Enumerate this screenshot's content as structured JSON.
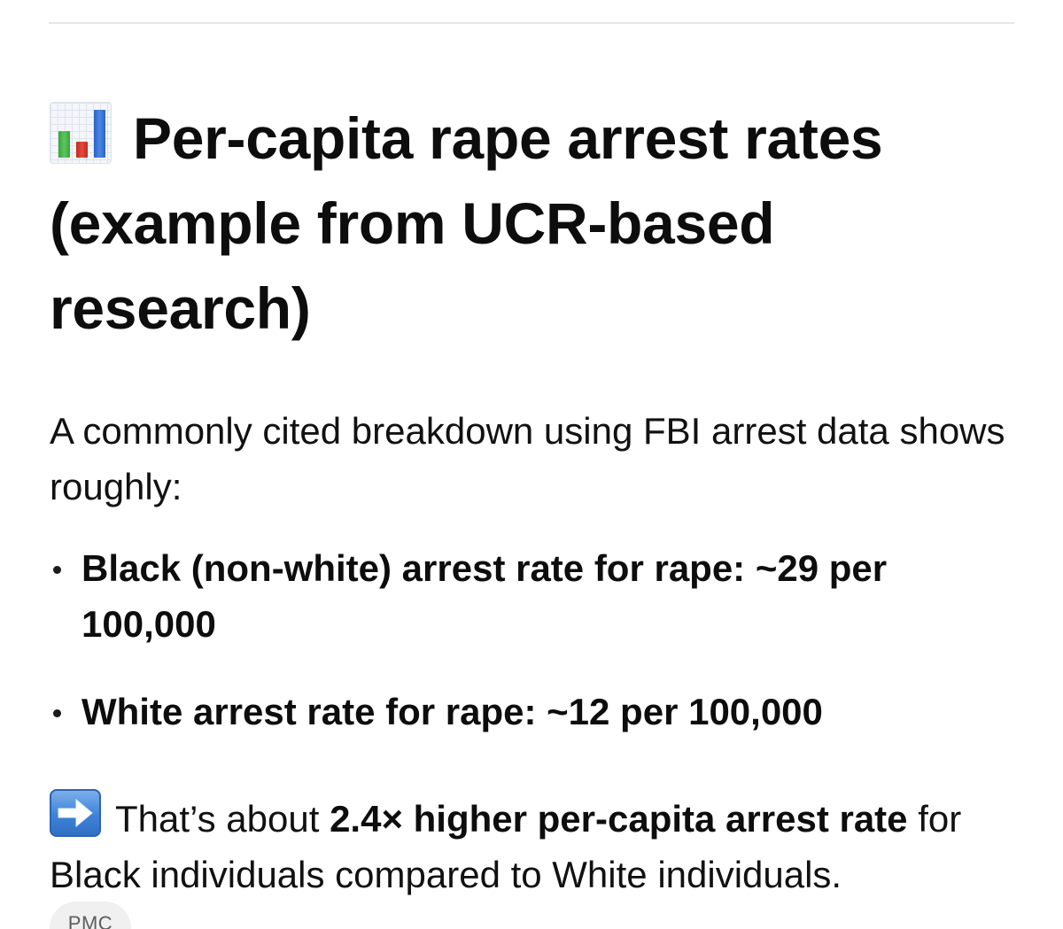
{
  "heading": {
    "icon": "bar-chart-icon",
    "text": "Per-capita rape arrest rates (example from UCR-based research)"
  },
  "intro": "A commonly cited breakdown using FBI arrest data shows roughly:",
  "bullets": [
    "Black (non-white) arrest rate for rape: ~29 per 100,000",
    "White arrest rate for rape: ~12 per 100,000"
  ],
  "conclusion": {
    "icon": "right-arrow-icon",
    "prefix": "That’s about",
    "emphasis": "2.4× higher per-capita arrest rate",
    "suffix": "for Black individuals compared to White individuals."
  },
  "source_chip": "PMC"
}
